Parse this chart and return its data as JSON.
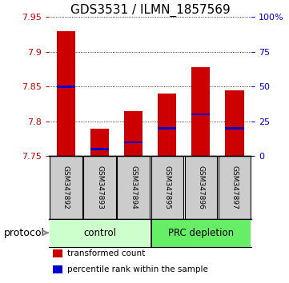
{
  "title": "GDS3531 / ILMN_1857569",
  "samples": [
    "GSM347892",
    "GSM347893",
    "GSM347894",
    "GSM347895",
    "GSM347896",
    "GSM347897"
  ],
  "bar_bottom": 7.75,
  "bar_tops": [
    7.93,
    7.79,
    7.815,
    7.84,
    7.878,
    7.845
  ],
  "percentile_ranks": [
    50,
    5,
    10,
    20,
    30,
    20
  ],
  "ylim": [
    7.75,
    7.95
  ],
  "yticks": [
    7.75,
    7.8,
    7.85,
    7.9,
    7.95
  ],
  "right_yticks": [
    0,
    25,
    50,
    75,
    100
  ],
  "right_ytick_labels": [
    "0",
    "25",
    "50",
    "75",
    "100%"
  ],
  "bar_color": "#cc0000",
  "blue_color": "#0000cc",
  "control_color": "#ccffcc",
  "prc_color": "#66ee66",
  "sample_box_color": "#cccccc",
  "protocol_label": "protocol",
  "legend_items": [
    {
      "color": "#cc0000",
      "label": "transformed count"
    },
    {
      "color": "#0000cc",
      "label": "percentile rank within the sample"
    }
  ],
  "title_fontsize": 11,
  "tick_fontsize": 8,
  "sample_fontsize": 6.5,
  "group_fontsize": 8.5,
  "legend_fontsize": 7.5
}
